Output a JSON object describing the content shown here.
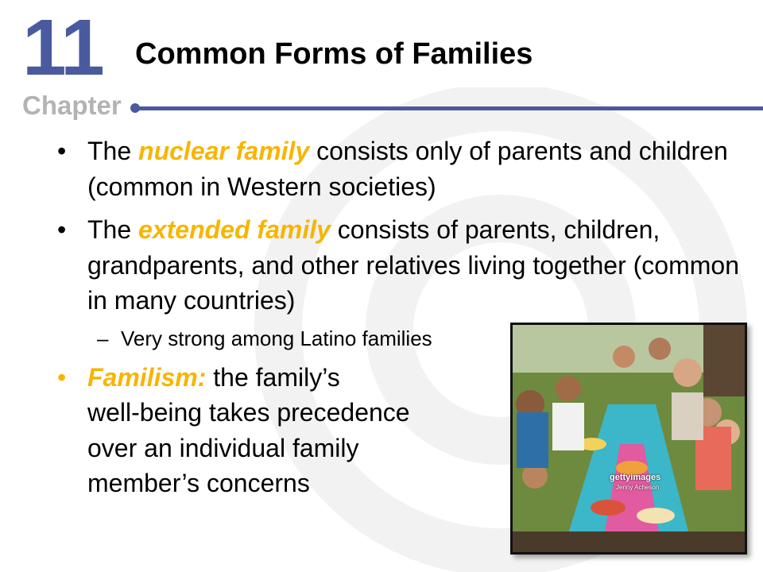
{
  "header": {
    "chapter_number": "11",
    "chapter_word": "Chapter",
    "title": "Common Forms of Families"
  },
  "bullets": [
    {
      "pre": "The ",
      "highlight": "nuclear family",
      "post": " consists only of parents and children (common in Western societies)"
    },
    {
      "pre": "The ",
      "highlight": "extended family",
      "post": " consists of parents, children, grandparents, and other relatives living together (common in many countries)"
    },
    {
      "sub": "Very strong among Latino families"
    },
    {
      "pre": "",
      "highlight": "Familism:",
      "post": " the family’s",
      "line2": "well-being takes precedence",
      "line3": "over an individual family",
      "line4": "member’s concerns"
    }
  ],
  "photo": {
    "description": "family-picnic-photo",
    "watermark": "gettyimages",
    "credit": "Jenny Acheson"
  },
  "colors": {
    "accent_blue": "#4a5a9e",
    "highlight": "#f7b500",
    "chapter_gray": "#b3b3b3"
  }
}
